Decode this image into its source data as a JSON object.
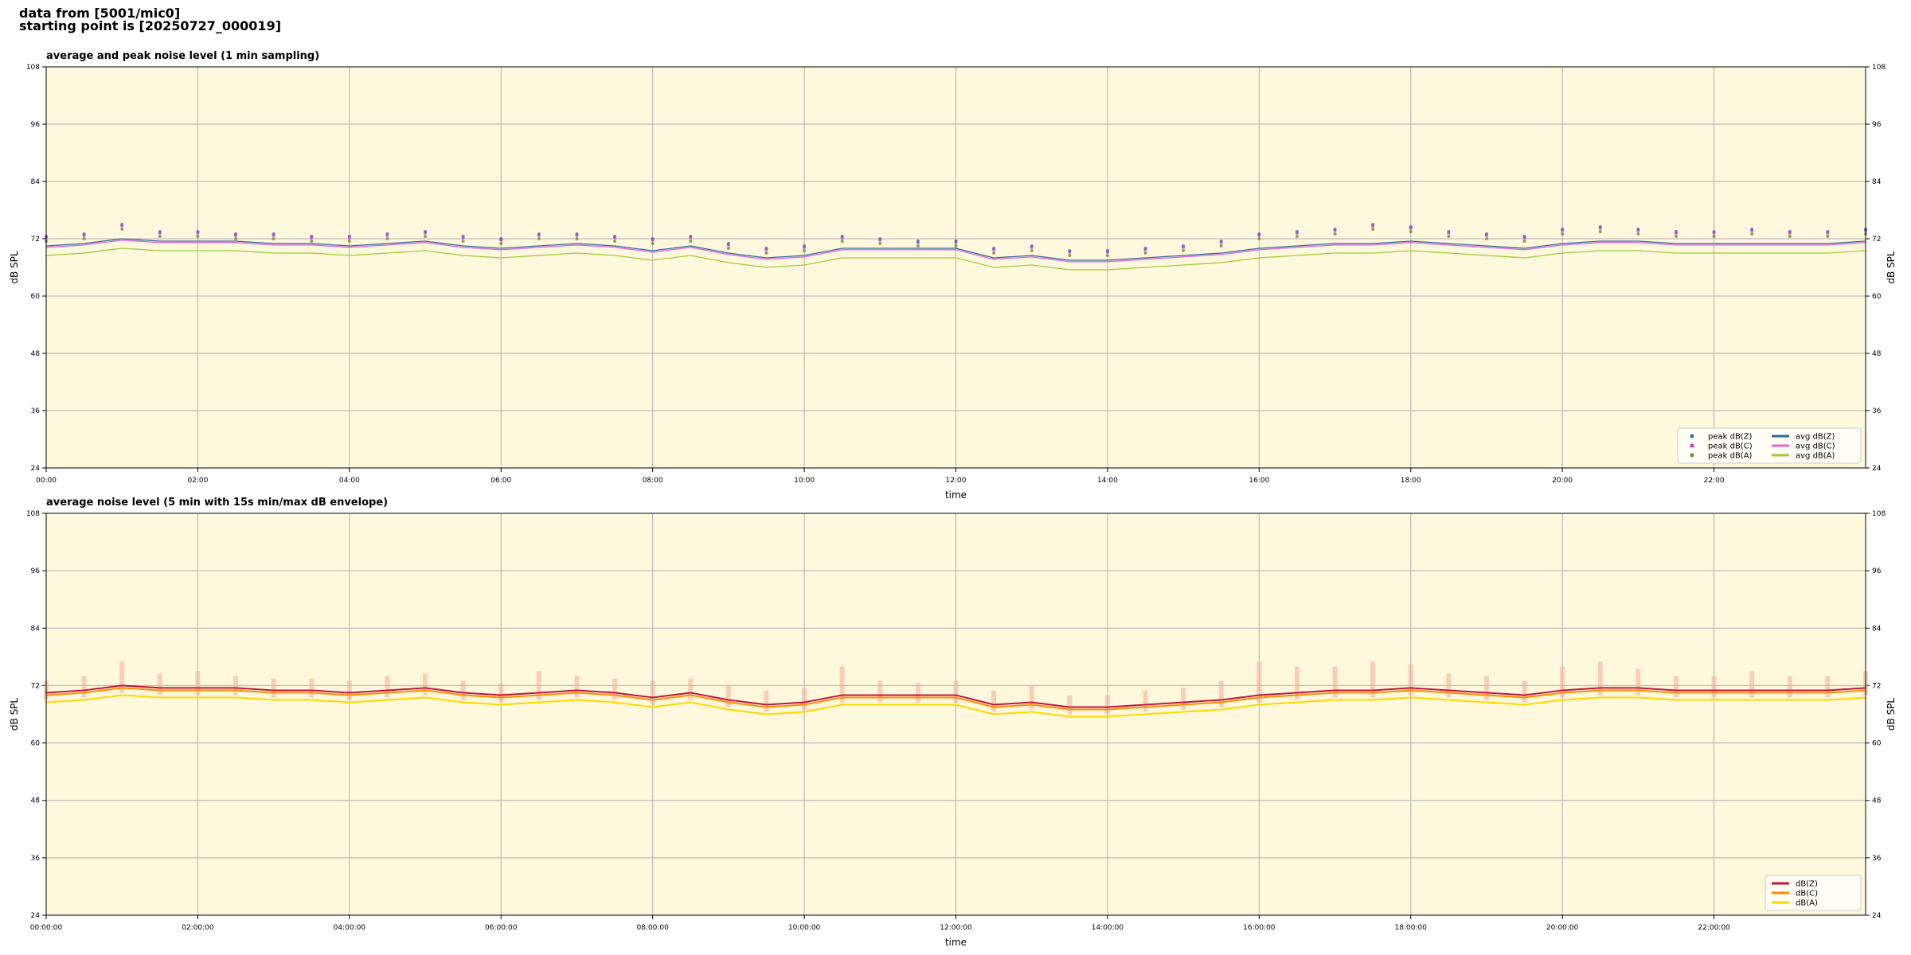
{
  "header": {
    "source": "data from [5001/mic0]",
    "start": "starting point is [20250727_000019]"
  },
  "chart_data": [
    {
      "type": "line",
      "title": "average and peak noise level (1 min sampling)",
      "xlabel": "time",
      "ylabel": "dB SPL",
      "x": [
        0,
        0.5,
        1,
        1.5,
        2,
        2.5,
        3,
        3.5,
        4,
        4.5,
        5,
        5.5,
        6,
        6.5,
        7,
        7.5,
        8,
        8.5,
        9,
        9.5,
        10,
        10.5,
        11,
        11.5,
        12,
        12.5,
        13,
        13.5,
        14,
        14.5,
        15,
        15.5,
        16,
        16.5,
        17,
        17.5,
        18,
        18.5,
        19,
        19.5,
        20,
        20.5,
        21,
        21.5,
        22,
        22.5,
        23,
        23.5,
        24
      ],
      "xlim": [
        0,
        24
      ],
      "xticks": [
        {
          "value": 0,
          "label": "00:00"
        },
        {
          "value": 2,
          "label": "02:00"
        },
        {
          "value": 4,
          "label": "04:00"
        },
        {
          "value": 6,
          "label": "06:00"
        },
        {
          "value": 8,
          "label": "08:00"
        },
        {
          "value": 10,
          "label": "10:00"
        },
        {
          "value": 12,
          "label": "12:00"
        },
        {
          "value": 14,
          "label": "14:00"
        },
        {
          "value": 16,
          "label": "16:00"
        },
        {
          "value": 18,
          "label": "18:00"
        },
        {
          "value": 20,
          "label": "20:00"
        },
        {
          "value": 22,
          "label": "22:00"
        }
      ],
      "ylim": [
        24,
        108
      ],
      "yticks": [
        24,
        36,
        48,
        60,
        72,
        84,
        96,
        108
      ],
      "grid": true,
      "legend": "lower right",
      "legend_columns": 2,
      "series": [
        {
          "name": "peak dB(Z)",
          "kind": "scatter",
          "color": "#1f77b4",
          "values": [
            72.5,
            73,
            75,
            73.5,
            73.5,
            73,
            73,
            72.5,
            72.5,
            73,
            73.5,
            72.5,
            72,
            73,
            73,
            72.5,
            72,
            72.5,
            71,
            70,
            70.5,
            72.5,
            72,
            71.5,
            71.5,
            70,
            70.5,
            69.5,
            69.5,
            70,
            70.5,
            71.5,
            73,
            73.5,
            74,
            75,
            74.5,
            73.5,
            73,
            72.5,
            74,
            74.5,
            74,
            73.5,
            73.5,
            74,
            73.5,
            73.5,
            74
          ]
        },
        {
          "name": "peak dB(C)",
          "kind": "scatter",
          "color": "#cc33cc",
          "values": [
            72.2,
            72.7,
            74.7,
            73.2,
            73.2,
            72.7,
            72.7,
            72.2,
            72.2,
            72.7,
            73.2,
            72.2,
            71.7,
            72.7,
            72.7,
            72.2,
            71.7,
            72.2,
            70.7,
            69.7,
            70.2,
            72.2,
            71.7,
            71.2,
            71.2,
            69.7,
            70.2,
            69.2,
            69.2,
            69.7,
            70.2,
            71.2,
            72.7,
            73.2,
            73.7,
            74.7,
            74.2,
            73.2,
            72.7,
            72.2,
            73.7,
            74.2,
            73.7,
            73.2,
            73.2,
            73.7,
            73.2,
            73.2,
            73.7
          ]
        },
        {
          "name": "peak dB(A)",
          "kind": "scatter",
          "color": "#6a8f3a",
          "values": [
            71.5,
            72,
            74,
            72.5,
            72.5,
            72,
            72,
            71.5,
            71.5,
            72,
            72.5,
            71.5,
            71,
            72,
            72,
            71.5,
            71,
            71.5,
            70,
            69,
            69.5,
            71.5,
            71,
            70.5,
            70.5,
            69,
            69.5,
            68.5,
            68.5,
            69,
            69.5,
            70.5,
            72,
            72.5,
            73,
            74,
            73.5,
            72.5,
            72,
            71.5,
            73,
            73.5,
            73,
            72.5,
            72.5,
            73,
            72.5,
            72.5,
            73
          ]
        },
        {
          "name": "avg dB(Z)",
          "kind": "line",
          "color": "#2b6a9a",
          "values": [
            70.5,
            71,
            72,
            71.5,
            71.5,
            71.5,
            71,
            71,
            70.5,
            71,
            71.5,
            70.5,
            70,
            70.5,
            71,
            70.5,
            69.5,
            70.5,
            69,
            68,
            68.5,
            70,
            70,
            70,
            70,
            68,
            68.5,
            67.5,
            67.5,
            68,
            68.5,
            69,
            70,
            70.5,
            71,
            71,
            71.5,
            71,
            70.5,
            70,
            71,
            71.5,
            71.5,
            71,
            71,
            71,
            71,
            71,
            71.5
          ]
        },
        {
          "name": "avg dB(C)",
          "kind": "line",
          "color": "#e066d8",
          "values": [
            70.2,
            70.7,
            71.7,
            71.2,
            71.2,
            71.2,
            70.7,
            70.7,
            70.2,
            70.7,
            71.2,
            70.2,
            69.7,
            70.2,
            70.7,
            70.2,
            69.2,
            70.2,
            68.7,
            67.7,
            68.2,
            69.7,
            69.7,
            69.7,
            69.7,
            67.7,
            68.2,
            67.2,
            67.2,
            67.7,
            68.2,
            68.7,
            69.7,
            70.2,
            70.7,
            70.7,
            71.2,
            70.7,
            70.2,
            69.7,
            70.7,
            71.2,
            71.2,
            70.7,
            70.7,
            70.7,
            70.7,
            70.7,
            71.2
          ]
        },
        {
          "name": "avg dB(A)",
          "kind": "line",
          "color": "#9acd32",
          "values": [
            68.5,
            69,
            70,
            69.5,
            69.5,
            69.5,
            69,
            69,
            68.5,
            69,
            69.5,
            68.5,
            68,
            68.5,
            69,
            68.5,
            67.5,
            68.5,
            67,
            66,
            66.5,
            68,
            68,
            68,
            68,
            66,
            66.5,
            65.5,
            65.5,
            66,
            66.5,
            67,
            68,
            68.5,
            69,
            69,
            69.5,
            69,
            68.5,
            68,
            69,
            69.5,
            69.5,
            69,
            69,
            69,
            69,
            69,
            69.5
          ]
        }
      ]
    },
    {
      "type": "line",
      "title": "average noise level (5 min with 15s min/max dB envelope)",
      "xlabel": "time",
      "ylabel": "dB SPL",
      "x": [
        0,
        0.5,
        1,
        1.5,
        2,
        2.5,
        3,
        3.5,
        4,
        4.5,
        5,
        5.5,
        6,
        6.5,
        7,
        7.5,
        8,
        8.5,
        9,
        9.5,
        10,
        10.5,
        11,
        11.5,
        12,
        12.5,
        13,
        13.5,
        14,
        14.5,
        15,
        15.5,
        16,
        16.5,
        17,
        17.5,
        18,
        18.5,
        19,
        19.5,
        20,
        20.5,
        21,
        21.5,
        22,
        22.5,
        23,
        23.5,
        24
      ],
      "xlim": [
        0,
        24
      ],
      "xticks": [
        {
          "value": 0,
          "label": "00:00:00"
        },
        {
          "value": 2,
          "label": "02:00:00"
        },
        {
          "value": 4,
          "label": "04:00:00"
        },
        {
          "value": 6,
          "label": "06:00:00"
        },
        {
          "value": 8,
          "label": "08:00:00"
        },
        {
          "value": 10,
          "label": "10:00:00"
        },
        {
          "value": 12,
          "label": "12:00:00"
        },
        {
          "value": 14,
          "label": "14:00:00"
        },
        {
          "value": 16,
          "label": "16:00:00"
        },
        {
          "value": 18,
          "label": "18:00:00"
        },
        {
          "value": 20,
          "label": "20:00:00"
        },
        {
          "value": 22,
          "label": "22:00:00"
        }
      ],
      "ylim": [
        24,
        108
      ],
      "yticks": [
        24,
        36,
        48,
        60,
        72,
        84,
        96,
        108
      ],
      "grid": true,
      "legend": "lower right",
      "legend_columns": 1,
      "envelope": {
        "color": "#f4b3a0",
        "upper": [
          73,
          74,
          77,
          74.5,
          75,
          74,
          73.5,
          73.5,
          73,
          74,
          74.5,
          73,
          72.5,
          75,
          74,
          73.5,
          73,
          73.5,
          72,
          71,
          71.5,
          76,
          73,
          72.5,
          73,
          71,
          72,
          70,
          70,
          71,
          71.5,
          73,
          77,
          76,
          76,
          77,
          76.5,
          74.5,
          74,
          73,
          76,
          77,
          75.5,
          74,
          74,
          75,
          74,
          74,
          75
        ],
        "lower": [
          69,
          69.5,
          70.5,
          70,
          70,
          70,
          69.5,
          69.5,
          69,
          69.5,
          70,
          69,
          68.5,
          69,
          69.5,
          69,
          68,
          69,
          67.5,
          66.5,
          67,
          68.5,
          68.5,
          68.5,
          68.5,
          66.5,
          67,
          66,
          66,
          66.5,
          67,
          67.5,
          68.5,
          69,
          69.5,
          69.5,
          70,
          69.5,
          69,
          68.5,
          69.5,
          70,
          70,
          69.5,
          69.5,
          69.5,
          69.5,
          69.5,
          70
        ]
      },
      "series": [
        {
          "name": "dB(Z)",
          "kind": "line",
          "color": "#c0143c",
          "values": [
            70.5,
            71,
            72,
            71.5,
            71.5,
            71.5,
            71,
            71,
            70.5,
            71,
            71.5,
            70.5,
            70,
            70.5,
            71,
            70.5,
            69.5,
            70.5,
            69,
            68,
            68.5,
            70,
            70,
            70,
            70,
            68,
            68.5,
            67.5,
            67.5,
            68,
            68.5,
            69,
            70,
            70.5,
            71,
            71,
            71.5,
            71,
            70.5,
            70,
            71,
            71.5,
            71.5,
            71,
            71,
            71,
            71,
            71,
            71.5
          ]
        },
        {
          "name": "dB(C)",
          "kind": "line",
          "color": "#ff8c00",
          "values": [
            70,
            70.5,
            71.5,
            71,
            71,
            71,
            70.5,
            70.5,
            70,
            70.5,
            71,
            70,
            69.5,
            70,
            70.5,
            70,
            69,
            70,
            68.5,
            67.5,
            68,
            69.5,
            69.5,
            69.5,
            69.5,
            67.5,
            68,
            67,
            67,
            67.5,
            68,
            68.5,
            69.5,
            70,
            70.5,
            70.5,
            71,
            70.5,
            70,
            69.5,
            70.5,
            71,
            71,
            70.5,
            70.5,
            70.5,
            70.5,
            70.5,
            71
          ]
        },
        {
          "name": "dB(A)",
          "kind": "line",
          "color": "#ffd700",
          "values": [
            68.5,
            69,
            70,
            69.5,
            69.5,
            69.5,
            69,
            69,
            68.5,
            69,
            69.5,
            68.5,
            68,
            68.5,
            69,
            68.5,
            67.5,
            68.5,
            67,
            66,
            66.5,
            68,
            68,
            68,
            68,
            66,
            66.5,
            65.5,
            65.5,
            66,
            66.5,
            67,
            68,
            68.5,
            69,
            69,
            69.5,
            69,
            68.5,
            68,
            69,
            69.5,
            69.5,
            69,
            69,
            69,
            69,
            69,
            69.5
          ]
        }
      ]
    }
  ]
}
